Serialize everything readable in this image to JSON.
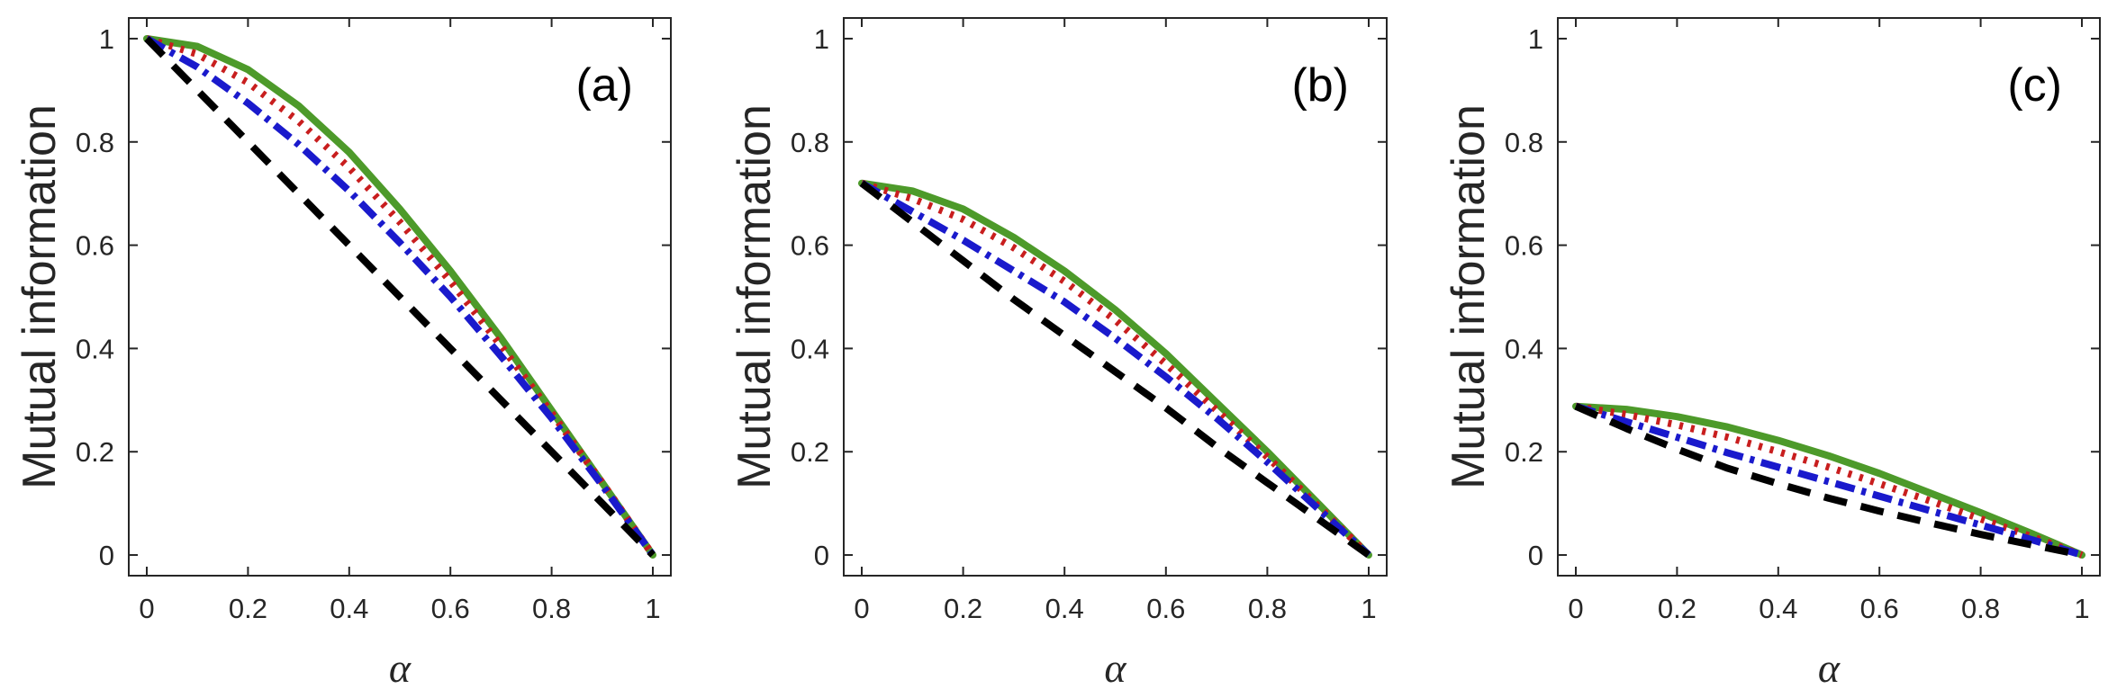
{
  "chart_data": [
    {
      "type": "line",
      "panel_label": "(a)",
      "xlabel": "α",
      "ylabel": "Mutual information",
      "xlim": [
        0,
        1
      ],
      "ylim": [
        -0.04,
        1.04
      ],
      "xticks": [
        0,
        0.2,
        0.4,
        0.6,
        0.8,
        1
      ],
      "xtick_labels": [
        "0",
        "0.2",
        "0.4",
        "0.6",
        "0.8",
        "1"
      ],
      "yticks": [
        0,
        0.2,
        0.4,
        0.6,
        0.8,
        1
      ],
      "ytick_labels": [
        "0",
        "0.2",
        "0.4",
        "0.6",
        "0.8",
        "1"
      ],
      "x": [
        0,
        0.1,
        0.2,
        0.3,
        0.4,
        0.5,
        0.6,
        0.7,
        0.8,
        0.9,
        1.0
      ],
      "series": [
        {
          "name": "solid",
          "style": "solid",
          "color": "#4d9a2a",
          "values": [
            1.0,
            0.985,
            0.94,
            0.87,
            0.78,
            0.67,
            0.55,
            0.42,
            0.28,
            0.14,
            0.0
          ]
        },
        {
          "name": "dotted",
          "style": "dotted",
          "color": "#c81e1e",
          "values": [
            1.0,
            0.97,
            0.915,
            0.84,
            0.75,
            0.645,
            0.53,
            0.405,
            0.275,
            0.14,
            0.0
          ]
        },
        {
          "name": "dash-dot",
          "style": "dashdot",
          "color": "#1a1acc",
          "values": [
            1.0,
            0.945,
            0.875,
            0.795,
            0.705,
            0.605,
            0.5,
            0.385,
            0.265,
            0.135,
            0.0
          ]
        },
        {
          "name": "dashed",
          "style": "dashed",
          "color": "#000000",
          "values": [
            1.0,
            0.9,
            0.8,
            0.7,
            0.6,
            0.5,
            0.4,
            0.3,
            0.2,
            0.1,
            0.0
          ]
        }
      ]
    },
    {
      "type": "line",
      "panel_label": "(b)",
      "xlabel": "α",
      "ylabel": "Mutual information",
      "xlim": [
        0,
        1
      ],
      "ylim": [
        -0.04,
        1.04
      ],
      "xticks": [
        0,
        0.2,
        0.4,
        0.6,
        0.8,
        1
      ],
      "xtick_labels": [
        "0",
        "0.2",
        "0.4",
        "0.6",
        "0.8",
        "1"
      ],
      "yticks": [
        0,
        0.2,
        0.4,
        0.6,
        0.8,
        1
      ],
      "ytick_labels": [
        "0",
        "0.2",
        "0.4",
        "0.6",
        "0.8",
        "1"
      ],
      "x": [
        0,
        0.1,
        0.2,
        0.3,
        0.4,
        0.5,
        0.6,
        0.7,
        0.8,
        0.9,
        1.0
      ],
      "series": [
        {
          "name": "solid",
          "style": "solid",
          "color": "#4d9a2a",
          "values": [
            0.72,
            0.705,
            0.67,
            0.615,
            0.55,
            0.475,
            0.39,
            0.295,
            0.2,
            0.1,
            0.0
          ]
        },
        {
          "name": "dotted",
          "style": "dotted",
          "color": "#c81e1e",
          "values": [
            0.72,
            0.69,
            0.65,
            0.595,
            0.53,
            0.455,
            0.37,
            0.28,
            0.19,
            0.095,
            0.0
          ]
        },
        {
          "name": "dash-dot",
          "style": "dashdot",
          "color": "#1a1acc",
          "values": [
            0.72,
            0.665,
            0.61,
            0.55,
            0.49,
            0.42,
            0.345,
            0.265,
            0.18,
            0.09,
            0.0
          ]
        },
        {
          "name": "dashed",
          "style": "dashed",
          "color": "#000000",
          "values": [
            0.72,
            0.645,
            0.57,
            0.495,
            0.425,
            0.355,
            0.285,
            0.21,
            0.14,
            0.07,
            0.0
          ]
        }
      ]
    },
    {
      "type": "line",
      "panel_label": "(c)",
      "xlabel": "α",
      "ylabel": "Mutual information",
      "xlim": [
        0,
        1
      ],
      "ylim": [
        -0.04,
        1.04
      ],
      "xticks": [
        0,
        0.2,
        0.4,
        0.6,
        0.8,
        1
      ],
      "xtick_labels": [
        "0",
        "0.2",
        "0.4",
        "0.6",
        "0.8",
        "1"
      ],
      "yticks": [
        0,
        0.2,
        0.4,
        0.6,
        0.8,
        1
      ],
      "ytick_labels": [
        "0",
        "0.2",
        "0.4",
        "0.6",
        "0.8",
        "1"
      ],
      "x": [
        0,
        0.1,
        0.2,
        0.3,
        0.4,
        0.5,
        0.6,
        0.7,
        0.8,
        0.9,
        1.0
      ],
      "series": [
        {
          "name": "solid",
          "style": "solid",
          "color": "#4d9a2a",
          "values": [
            0.288,
            0.282,
            0.268,
            0.248,
            0.222,
            0.192,
            0.158,
            0.12,
            0.082,
            0.042,
            0.0
          ]
        },
        {
          "name": "dotted",
          "style": "dotted",
          "color": "#c81e1e",
          "values": [
            0.288,
            0.272,
            0.252,
            0.228,
            0.2,
            0.17,
            0.138,
            0.105,
            0.07,
            0.036,
            0.0
          ]
        },
        {
          "name": "dash-dot",
          "style": "dashdot",
          "color": "#1a1acc",
          "values": [
            0.288,
            0.258,
            0.228,
            0.198,
            0.17,
            0.142,
            0.114,
            0.086,
            0.058,
            0.03,
            0.0
          ]
        },
        {
          "name": "dashed",
          "style": "dashed",
          "color": "#000000",
          "values": [
            0.288,
            0.245,
            0.205,
            0.168,
            0.138,
            0.11,
            0.085,
            0.062,
            0.04,
            0.02,
            0.0
          ]
        }
      ]
    }
  ]
}
